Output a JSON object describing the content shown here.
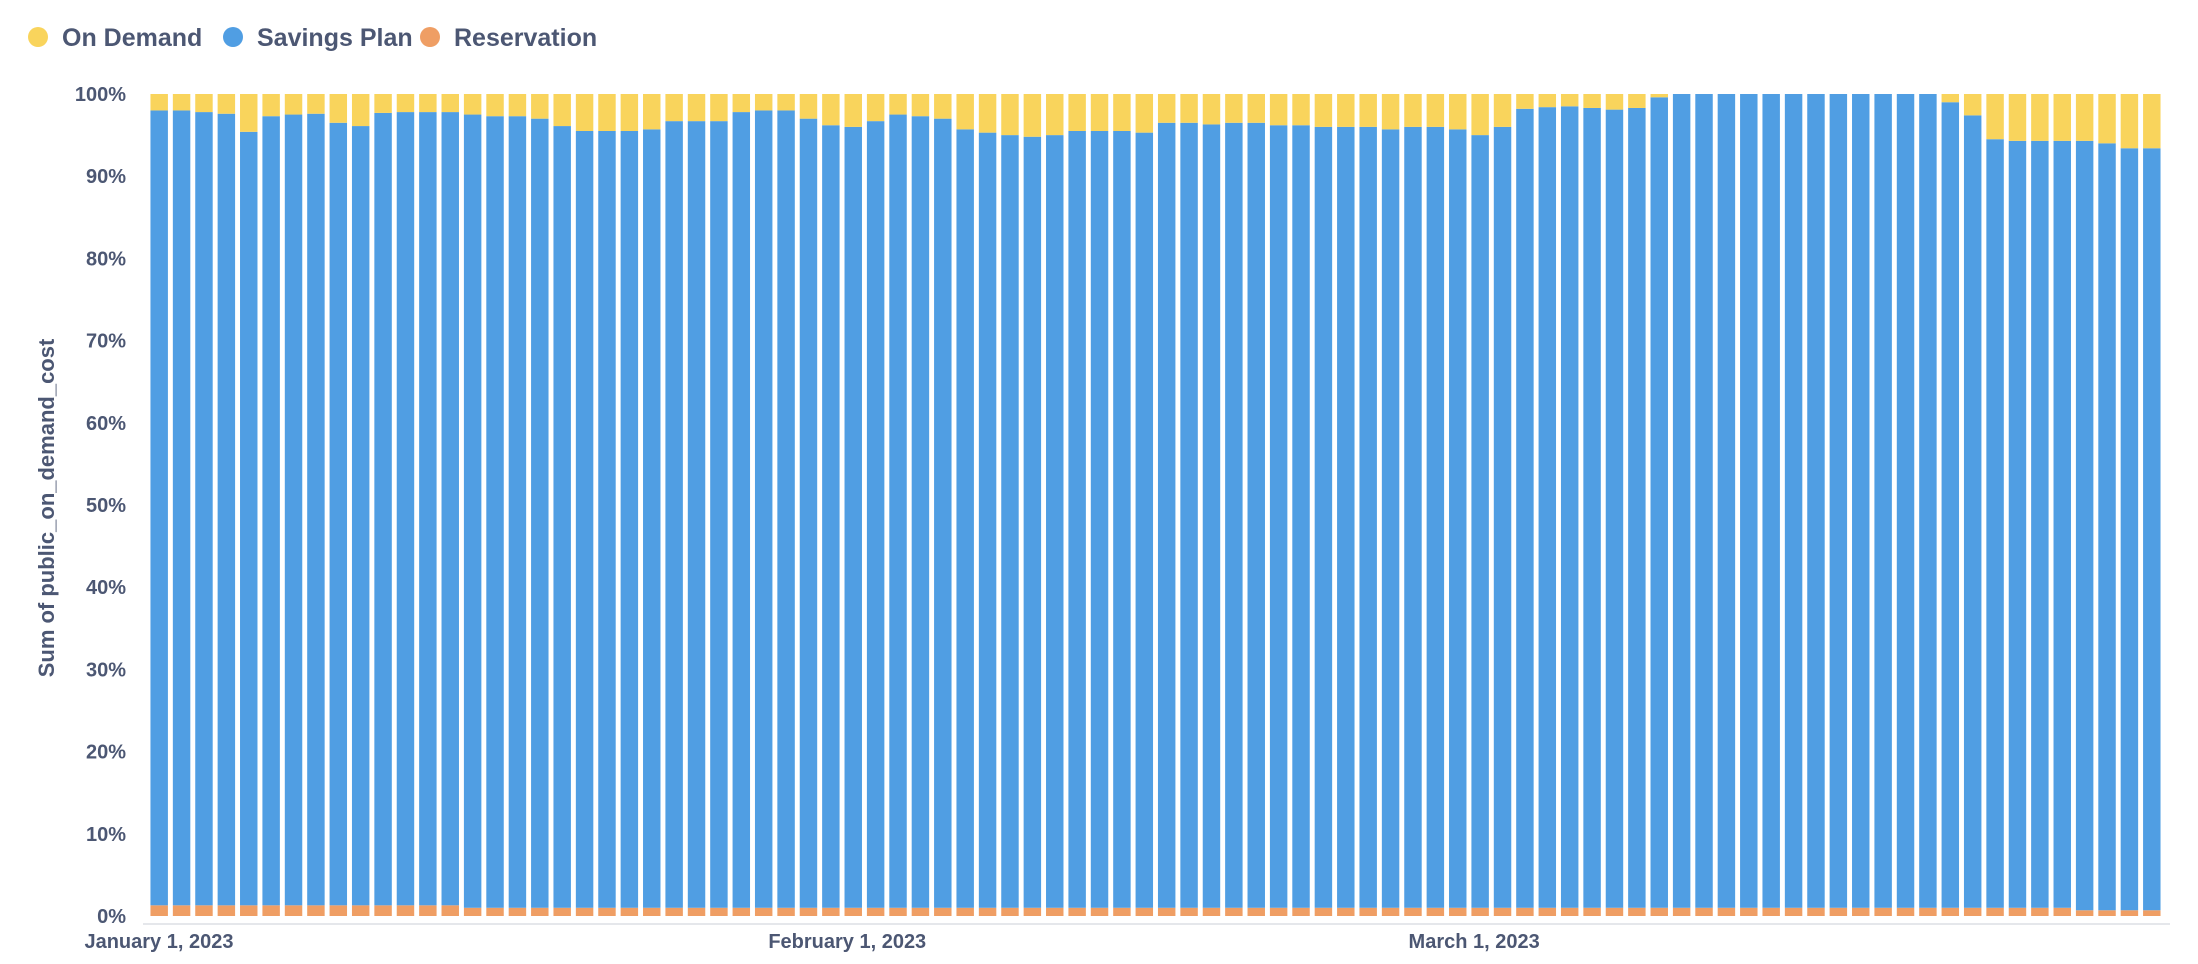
{
  "chart_data": {
    "type": "bar",
    "stacked": true,
    "normalized": true,
    "grid": false,
    "legend_placement": "top-left",
    "xlabel": "",
    "ylabel": "Sum of public_on_demand_cost",
    "ylim": [
      0,
      100
    ],
    "y_ticks": [
      "0%",
      "10%",
      "20%",
      "30%",
      "40%",
      "50%",
      "60%",
      "70%",
      "80%",
      "90%",
      "100%"
    ],
    "x_tick_labels": [
      {
        "date": "2023-01-01",
        "label": "January 1, 2023"
      },
      {
        "date": "2023-02-01",
        "label": "February 1, 2023"
      },
      {
        "date": "2023-03-01",
        "label": "March 1, 2023"
      }
    ],
    "categories": [
      "2023-01-01",
      "2023-01-02",
      "2023-01-03",
      "2023-01-04",
      "2023-01-05",
      "2023-01-06",
      "2023-01-07",
      "2023-01-08",
      "2023-01-09",
      "2023-01-10",
      "2023-01-11",
      "2023-01-12",
      "2023-01-13",
      "2023-01-14",
      "2023-01-15",
      "2023-01-16",
      "2023-01-17",
      "2023-01-18",
      "2023-01-19",
      "2023-01-20",
      "2023-01-21",
      "2023-01-22",
      "2023-01-23",
      "2023-01-24",
      "2023-01-25",
      "2023-01-26",
      "2023-01-27",
      "2023-01-28",
      "2023-01-29",
      "2023-01-30",
      "2023-01-31",
      "2023-02-01",
      "2023-02-02",
      "2023-02-03",
      "2023-02-04",
      "2023-02-05",
      "2023-02-06",
      "2023-02-07",
      "2023-02-08",
      "2023-02-09",
      "2023-02-10",
      "2023-02-11",
      "2023-02-12",
      "2023-02-13",
      "2023-02-14",
      "2023-02-15",
      "2023-02-16",
      "2023-02-17",
      "2023-02-18",
      "2023-02-19",
      "2023-02-20",
      "2023-02-21",
      "2023-02-22",
      "2023-02-23",
      "2023-02-24",
      "2023-02-25",
      "2023-02-26",
      "2023-02-27",
      "2023-02-28",
      "2023-03-01",
      "2023-03-02",
      "2023-03-03",
      "2023-03-04",
      "2023-03-05",
      "2023-03-06",
      "2023-03-07",
      "2023-03-08",
      "2023-03-09",
      "2023-03-10",
      "2023-03-11",
      "2023-03-12",
      "2023-03-13",
      "2023-03-14",
      "2023-03-15",
      "2023-03-16",
      "2023-03-17",
      "2023-03-18",
      "2023-03-19",
      "2023-03-20",
      "2023-03-21",
      "2023-03-22",
      "2023-03-23",
      "2023-03-24",
      "2023-03-25",
      "2023-03-26",
      "2023-03-27",
      "2023-03-28",
      "2023-03-29",
      "2023-03-30",
      "2023-03-31"
    ],
    "series": [
      {
        "name": "Reservation",
        "color": "#ef9e64",
        "values": [
          1.3,
          1.3,
          1.3,
          1.3,
          1.3,
          1.3,
          1.3,
          1.3,
          1.3,
          1.3,
          1.3,
          1.3,
          1.3,
          1.3,
          1.0,
          1.0,
          1.0,
          1.0,
          1.0,
          1.0,
          1.0,
          1.0,
          1.0,
          1.0,
          1.0,
          1.0,
          1.0,
          1.0,
          1.0,
          1.0,
          1.0,
          1.0,
          1.0,
          1.0,
          1.0,
          1.0,
          1.0,
          1.0,
          1.0,
          1.0,
          1.0,
          1.0,
          1.0,
          1.0,
          1.0,
          1.0,
          1.0,
          1.0,
          1.0,
          1.0,
          1.0,
          1.0,
          1.0,
          1.0,
          1.0,
          1.0,
          1.0,
          1.0,
          1.0,
          1.0,
          1.0,
          1.0,
          1.0,
          1.0,
          1.0,
          1.0,
          1.0,
          1.0,
          1.0,
          1.0,
          1.0,
          1.0,
          1.0,
          1.0,
          1.0,
          1.0,
          1.0,
          1.0,
          1.0,
          1.0,
          1.0,
          1.0,
          1.0,
          1.0,
          1.0,
          1.0,
          0.7,
          0.7,
          0.7,
          0.7
        ]
      },
      {
        "name": "Savings Plan",
        "color": "#509ee3",
        "values": [
          96.7,
          96.7,
          96.5,
          96.3,
          94.1,
          96.0,
          96.2,
          96.3,
          95.2,
          94.8,
          96.4,
          96.5,
          96.5,
          96.5,
          96.5,
          96.3,
          96.3,
          96.0,
          95.1,
          94.5,
          94.5,
          94.5,
          94.7,
          95.7,
          95.7,
          95.7,
          96.8,
          97.0,
          97.0,
          96.0,
          95.2,
          95.0,
          95.7,
          96.5,
          96.3,
          96.0,
          94.7,
          94.3,
          94.0,
          93.8,
          94.0,
          94.5,
          94.5,
          94.5,
          94.3,
          95.5,
          95.5,
          95.3,
          95.5,
          95.5,
          95.2,
          95.2,
          95.0,
          95.0,
          95.0,
          94.7,
          95.0,
          95.0,
          94.7,
          94.0,
          95.0,
          97.2,
          97.4,
          97.5,
          97.3,
          97.1,
          97.3,
          98.6,
          99.0,
          99.0,
          99.0,
          99.0,
          99.0,
          99.0,
          99.0,
          99.0,
          99.0,
          99.0,
          99.0,
          99.0,
          98.0,
          96.4,
          93.5,
          93.3,
          93.3,
          93.3,
          93.6,
          93.3,
          92.7,
          92.7
        ]
      },
      {
        "name": "On Demand",
        "color": "#f9d45c",
        "values": [
          2.0,
          2.0,
          2.2,
          2.4,
          4.6,
          2.7,
          2.5,
          2.4,
          3.5,
          3.9,
          2.3,
          2.2,
          2.2,
          2.2,
          2.5,
          2.7,
          2.7,
          3.0,
          3.9,
          4.5,
          4.5,
          4.5,
          4.3,
          3.3,
          3.3,
          3.3,
          2.2,
          2.0,
          2.0,
          3.0,
          3.8,
          4.0,
          3.3,
          2.5,
          2.7,
          3.0,
          4.3,
          4.7,
          5.0,
          5.2,
          5.0,
          4.5,
          4.5,
          4.5,
          4.7,
          3.5,
          3.5,
          3.7,
          3.5,
          3.5,
          3.8,
          3.8,
          4.0,
          4.0,
          4.0,
          4.3,
          4.0,
          4.0,
          4.3,
          5.0,
          4.0,
          1.8,
          1.6,
          1.5,
          1.7,
          1.9,
          1.7,
          0.4,
          0.0,
          0.0,
          0.0,
          0.0,
          0.0,
          0.0,
          0.0,
          0.0,
          0.0,
          0.0,
          0.0,
          0.0,
          1.0,
          2.6,
          5.5,
          5.7,
          5.7,
          5.7,
          5.7,
          6.0,
          6.6,
          6.6
        ]
      }
    ],
    "legend": [
      {
        "name": "On Demand",
        "color": "#f9d45c"
      },
      {
        "name": "Savings Plan",
        "color": "#509ee3"
      },
      {
        "name": "Reservation",
        "color": "#ef9e64"
      }
    ]
  }
}
